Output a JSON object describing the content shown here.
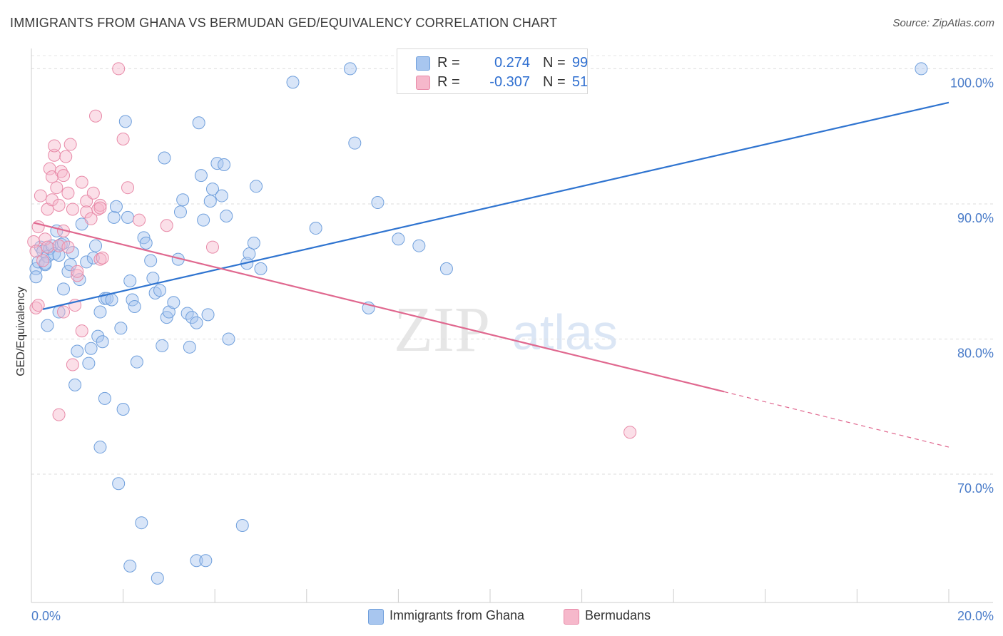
{
  "title": "IMMIGRANTS FROM GHANA VS BERMUDAN GED/EQUIVALENCY CORRELATION CHART",
  "source": "Source: ZipAtlas.com",
  "watermark": {
    "zip": "ZIP",
    "atlas": "atlas"
  },
  "legend": {
    "r_label": "R =",
    "n_label": "N =",
    "rows": [
      {
        "r": "0.274",
        "n": "99",
        "color": "#a8c6ef",
        "border": "#6f9fdc"
      },
      {
        "r": "-0.307",
        "n": "51",
        "color": "#f6b8cb",
        "border": "#e88aa8"
      }
    ]
  },
  "chart_data": {
    "type": "scatter",
    "xlabel": "",
    "ylabel": "GED/Equivalency",
    "xlim": [
      0,
      20
    ],
    "ylim": [
      60.5,
      101.5
    ],
    "x_tick_labels": [
      {
        "value": 0,
        "label": "0.0%"
      },
      {
        "value": 20,
        "label": "20.0%"
      }
    ],
    "y_tick_labels": [
      {
        "value": 100,
        "label": "100.0%"
      },
      {
        "value": 90,
        "label": "90.0%"
      },
      {
        "value": 80,
        "label": "80.0%"
      },
      {
        "value": 70,
        "label": "70.0%"
      }
    ],
    "grid": true,
    "legend_position": "bottom",
    "series": [
      {
        "name": "Immigrants from Ghana",
        "color": "#6f9fdc",
        "fill": "#a8c6ef",
        "trend": {
          "x": [
            0.25,
            20.0
          ],
          "y": [
            82.2,
            97.5
          ],
          "color": "#2f74d0"
        },
        "points": [
          [
            0.1,
            85.2
          ],
          [
            0.1,
            84.6
          ],
          [
            0.15,
            85.7
          ],
          [
            0.2,
            86.8
          ],
          [
            0.25,
            86.5
          ],
          [
            0.3,
            85.5
          ],
          [
            0.35,
            86.1
          ],
          [
            0.4,
            86.7
          ],
          [
            0.45,
            86.9
          ],
          [
            0.5,
            86.3
          ],
          [
            0.55,
            88.0
          ],
          [
            0.6,
            86.2
          ],
          [
            0.65,
            87.0
          ],
          [
            0.7,
            87.1
          ],
          [
            0.3,
            85.6
          ],
          [
            0.35,
            81.0
          ],
          [
            0.6,
            82.0
          ],
          [
            0.7,
            83.7
          ],
          [
            0.8,
            85.0
          ],
          [
            0.85,
            85.5
          ],
          [
            0.9,
            86.4
          ],
          [
            1.0,
            79.1
          ],
          [
            1.05,
            84.4
          ],
          [
            1.1,
            88.5
          ],
          [
            1.2,
            85.7
          ],
          [
            1.25,
            78.2
          ],
          [
            1.3,
            79.3
          ],
          [
            1.35,
            86.0
          ],
          [
            1.4,
            86.9
          ],
          [
            1.45,
            80.2
          ],
          [
            1.5,
            82.0
          ],
          [
            1.55,
            79.8
          ],
          [
            1.6,
            83.0
          ],
          [
            1.65,
            83.0
          ],
          [
            1.75,
            82.9
          ],
          [
            1.8,
            89.0
          ],
          [
            1.85,
            89.8
          ],
          [
            1.9,
            69.3
          ],
          [
            1.95,
            80.8
          ],
          [
            2.0,
            74.8
          ],
          [
            2.05,
            96.1
          ],
          [
            2.1,
            89.0
          ],
          [
            2.15,
            84.3
          ],
          [
            2.2,
            82.9
          ],
          [
            2.25,
            82.4
          ],
          [
            2.3,
            78.3
          ],
          [
            2.4,
            66.4
          ],
          [
            2.45,
            87.5
          ],
          [
            2.5,
            87.1
          ],
          [
            2.6,
            85.8
          ],
          [
            2.65,
            84.5
          ],
          [
            2.7,
            83.4
          ],
          [
            2.8,
            83.6
          ],
          [
            2.85,
            79.5
          ],
          [
            2.9,
            93.4
          ],
          [
            2.95,
            81.6
          ],
          [
            3.0,
            82.0
          ],
          [
            3.1,
            82.7
          ],
          [
            3.2,
            85.9
          ],
          [
            3.25,
            89.4
          ],
          [
            3.3,
            90.3
          ],
          [
            3.4,
            81.9
          ],
          [
            3.45,
            79.4
          ],
          [
            3.5,
            81.6
          ],
          [
            3.6,
            81.2
          ],
          [
            3.6,
            63.6
          ],
          [
            3.65,
            96.0
          ],
          [
            3.7,
            92.1
          ],
          [
            3.75,
            88.8
          ],
          [
            3.8,
            63.6
          ],
          [
            3.85,
            81.8
          ],
          [
            3.9,
            90.2
          ],
          [
            3.95,
            91.1
          ],
          [
            4.05,
            93.0
          ],
          [
            4.15,
            90.6
          ],
          [
            4.2,
            92.9
          ],
          [
            4.25,
            89.1
          ],
          [
            4.3,
            80.0
          ],
          [
            4.6,
            66.2
          ],
          [
            4.7,
            85.6
          ],
          [
            4.75,
            86.3
          ],
          [
            4.85,
            87.1
          ],
          [
            4.9,
            91.3
          ],
          [
            5.0,
            85.2
          ],
          [
            5.7,
            99.0
          ],
          [
            6.2,
            88.2
          ],
          [
            6.95,
            100.0
          ],
          [
            7.05,
            94.5
          ],
          [
            7.35,
            82.3
          ],
          [
            7.55,
            90.1
          ],
          [
            8.0,
            87.4
          ],
          [
            8.45,
            86.9
          ],
          [
            9.05,
            85.2
          ],
          [
            19.4,
            100.0
          ],
          [
            1.6,
            75.6
          ],
          [
            1.5,
            72.0
          ],
          [
            0.95,
            76.6
          ],
          [
            2.15,
            63.2
          ],
          [
            2.75,
            62.3
          ]
        ]
      },
      {
        "name": "Bermudans",
        "color": "#e88aa8",
        "fill": "#f6b8cb",
        "trend": {
          "x": [
            0.05,
            15.1
          ],
          "y": [
            88.6,
            76.1
          ],
          "color": "#e0688f"
        },
        "trend_dashed": {
          "x": [
            15.1,
            20.0
          ],
          "y": [
            76.1,
            72.0
          ]
        },
        "points": [
          [
            0.05,
            87.2
          ],
          [
            0.1,
            82.3
          ],
          [
            0.1,
            86.5
          ],
          [
            0.15,
            88.3
          ],
          [
            0.15,
            82.5
          ],
          [
            0.2,
            90.6
          ],
          [
            0.25,
            85.8
          ],
          [
            0.3,
            87.4
          ],
          [
            0.35,
            86.8
          ],
          [
            0.35,
            89.6
          ],
          [
            0.4,
            92.6
          ],
          [
            0.45,
            92.0
          ],
          [
            0.45,
            90.3
          ],
          [
            0.5,
            93.6
          ],
          [
            0.5,
            94.3
          ],
          [
            0.55,
            91.2
          ],
          [
            0.6,
            89.9
          ],
          [
            0.6,
            86.9
          ],
          [
            0.6,
            74.4
          ],
          [
            0.65,
            92.4
          ],
          [
            0.7,
            92.1
          ],
          [
            0.7,
            88.0
          ],
          [
            0.7,
            82.0
          ],
          [
            0.75,
            93.5
          ],
          [
            0.8,
            90.8
          ],
          [
            0.8,
            86.8
          ],
          [
            0.85,
            94.4
          ],
          [
            0.9,
            78.1
          ],
          [
            0.9,
            89.6
          ],
          [
            0.95,
            82.5
          ],
          [
            1.0,
            84.7
          ],
          [
            1.0,
            85.0
          ],
          [
            1.1,
            91.6
          ],
          [
            1.1,
            80.6
          ],
          [
            1.2,
            90.2
          ],
          [
            1.2,
            89.4
          ],
          [
            1.3,
            88.9
          ],
          [
            1.35,
            90.8
          ],
          [
            1.4,
            96.5
          ],
          [
            1.45,
            89.6
          ],
          [
            1.5,
            89.9
          ],
          [
            1.5,
            85.9
          ],
          [
            1.5,
            89.7
          ],
          [
            1.55,
            86.0
          ],
          [
            1.9,
            100.0
          ],
          [
            2.0,
            94.8
          ],
          [
            2.1,
            91.2
          ],
          [
            2.35,
            88.8
          ],
          [
            2.95,
            88.4
          ],
          [
            3.95,
            86.8
          ],
          [
            13.05,
            73.1
          ]
        ]
      }
    ]
  }
}
